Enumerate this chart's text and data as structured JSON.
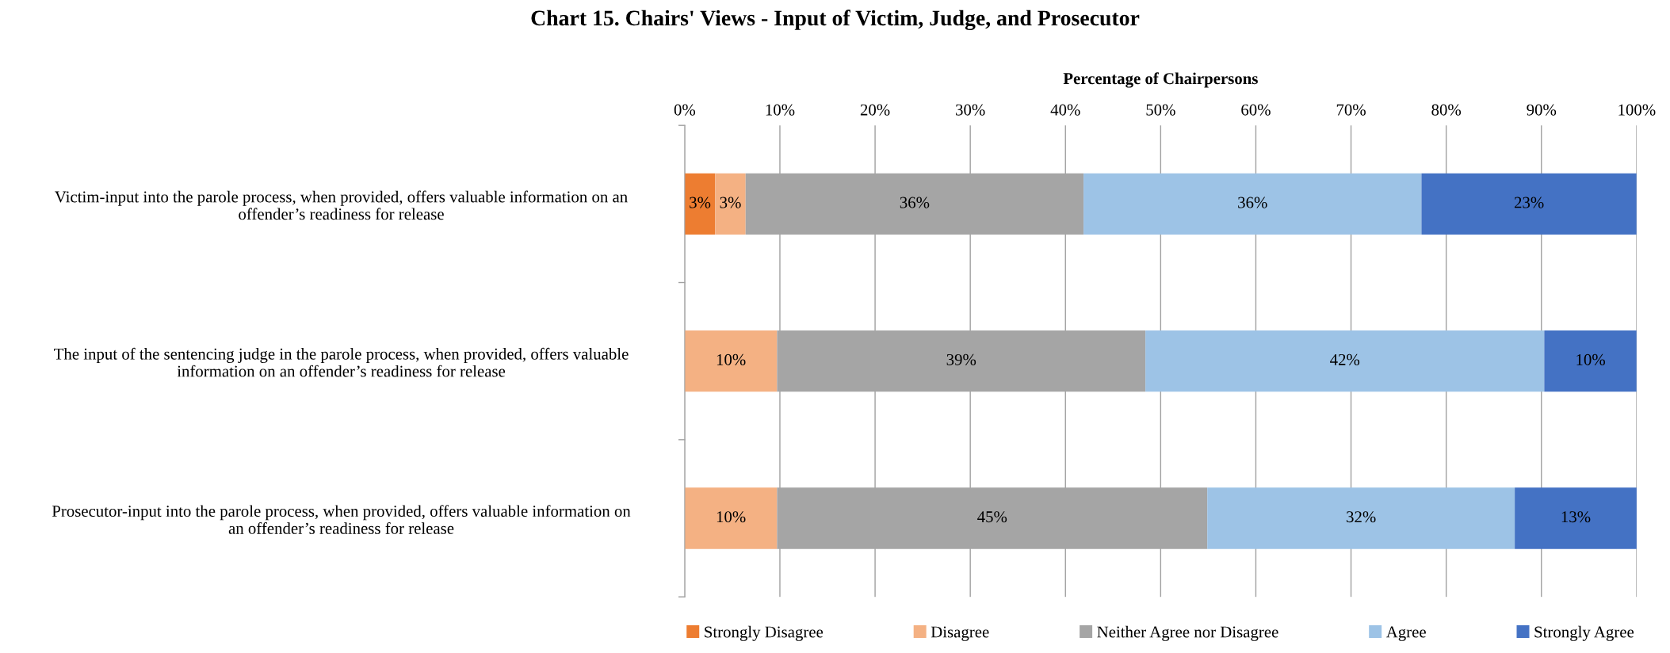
{
  "chart_data": {
    "type": "bar",
    "orientation": "horizontal",
    "stacked": true,
    "title": "Chart 15. Chairs' Views - Input of Victim, Judge, and Prosecutor",
    "xlabel": "Percentage of Chairpersons",
    "categories": [
      "Victim-input into the parole process, when provided, offers valuable information on an\noffender’s readiness for release",
      "The input of the sentencing judge in the parole process, when provided, offers valuable\ninformation on an offender’s readiness for release",
      "Prosecutor-input into the parole process, when provided, offers valuable information on\nan offender’s readiness for release"
    ],
    "series": [
      {
        "name": "Strongly Disagree",
        "color": "#ed7d31",
        "values": [
          3.2,
          0,
          0
        ],
        "value_labels": [
          "3%",
          null,
          null
        ]
      },
      {
        "name": "Disagree",
        "color": "#f4b183",
        "values": [
          3.2,
          9.7,
          9.7
        ],
        "value_labels": [
          "3%",
          "10%",
          "10%"
        ]
      },
      {
        "name": "Neither Agree nor Disagree",
        "color": "#a5a5a5",
        "values": [
          35.5,
          38.7,
          45.2
        ],
        "value_labels": [
          "36%",
          "39%",
          "45%"
        ]
      },
      {
        "name": "Agree",
        "color": "#9dc3e6",
        "values": [
          35.5,
          41.9,
          32.3
        ],
        "value_labels": [
          "36%",
          "42%",
          "32%"
        ]
      },
      {
        "name": "Strongly Agree",
        "color": "#4472c4",
        "values": [
          22.6,
          9.7,
          12.9
        ],
        "value_labels": [
          "23%",
          "10%",
          "13%"
        ]
      }
    ],
    "xlim": [
      0,
      100
    ],
    "xticks": [
      {
        "value": 0,
        "label": "0%"
      },
      {
        "value": 10,
        "label": "10%"
      },
      {
        "value": 20,
        "label": "20%"
      },
      {
        "value": 30,
        "label": "30%"
      },
      {
        "value": 40,
        "label": "40%"
      },
      {
        "value": 50,
        "label": "50%"
      },
      {
        "value": 60,
        "label": "60%"
      },
      {
        "value": 70,
        "label": "70%"
      },
      {
        "value": 80,
        "label": "80%"
      },
      {
        "value": 90,
        "label": "90%"
      },
      {
        "value": 100,
        "label": "100%"
      }
    ],
    "grid": "x",
    "legend": "bottom"
  }
}
